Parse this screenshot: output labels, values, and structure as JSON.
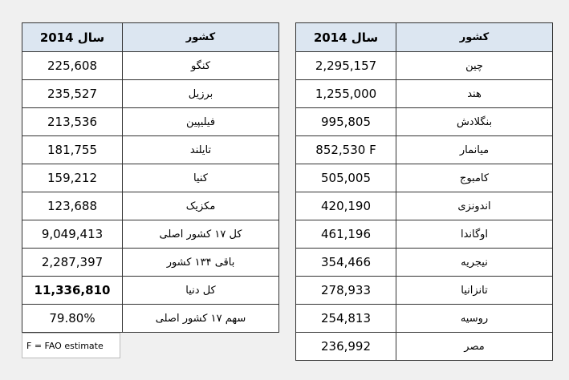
{
  "left_table": {
    "header": [
      "سال 2014",
      "کشور"
    ],
    "rows": [
      [
        "225,608",
        "کنگو"
      ],
      [
        "235,527",
        "برزیل"
      ],
      [
        "213,536",
        "فیلیپین"
      ],
      [
        "181,755",
        "تایلند"
      ],
      [
        "159,212",
        "کنیا"
      ],
      [
        "123,688",
        "مکزیک"
      ],
      [
        "9,049,413",
        "کل ۱۷ کشور اصلی"
      ],
      [
        "2,287,397",
        "باقی ۱۳۴ کشور"
      ],
      [
        "11,336,810",
        "کل دنیا"
      ],
      [
        "79.80%",
        "سهم ۱۷ کشور اصلی"
      ]
    ],
    "note": "F = FAO estimate"
  },
  "right_table": {
    "header": [
      "سال 2014",
      "کشور"
    ],
    "rows": [
      [
        "2,295,157",
        "چین"
      ],
      [
        "1,255,000",
        "هند"
      ],
      [
        "995,805",
        "بنگلادش"
      ],
      [
        "852,530 F",
        "میانمار"
      ],
      [
        "505,005",
        "کامبوج"
      ],
      [
        "420,190",
        "اندونزی"
      ],
      [
        "461,196",
        "اوگاندا"
      ],
      [
        "354,466",
        "نیجریه"
      ],
      [
        "278,933",
        "تانزانیا"
      ],
      [
        "254,813",
        "روسیه"
      ],
      [
        "236,992",
        "مصر"
      ]
    ]
  }
}
